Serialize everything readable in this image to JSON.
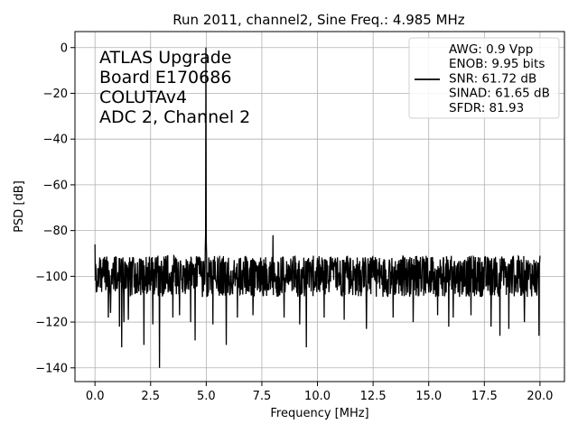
{
  "chart_data": {
    "type": "line",
    "title": "Run 2011, channel2, Sine Freq.: 4.985 MHz",
    "xlabel": "Frequency [MHz]",
    "ylabel": "PSD [dB]",
    "xlim": [
      -0.9,
      21.1
    ],
    "ylim": [
      -146,
      7
    ],
    "x_ticks": [
      0.0,
      2.5,
      5.0,
      7.5,
      10.0,
      12.5,
      15.0,
      17.5,
      20.0
    ],
    "x_tick_labels": [
      "0.0",
      "2.5",
      "5.0",
      "7.5",
      "10.0",
      "12.5",
      "15.0",
      "17.5",
      "20.0"
    ],
    "y_ticks": [
      0,
      -20,
      -40,
      -60,
      -80,
      -100,
      -120,
      -140
    ],
    "y_tick_labels": [
      "0",
      "−20",
      "−40",
      "−60",
      "−80",
      "−100",
      "−120",
      "−140"
    ],
    "grid": true,
    "legend_position": "top-right",
    "annotation_lines": [
      "ATLAS Upgrade",
      " Board E170686",
      "COLUTAv4",
      "ADC 2, Channel 2"
    ],
    "legend_lines": [
      "AWG: 0.9 Vpp",
      "ENOB: 9.95 bits",
      "SNR: 61.72 dB",
      "SINAD: 61.65 dB",
      "SFDR: 81.93"
    ],
    "series": [
      {
        "color": "#000000",
        "noise_floor_db": -100,
        "noise_band_db": [
          -110,
          -91
        ],
        "start_point": [
          0.0,
          -86
        ],
        "peaks": [
          {
            "x": 4.985,
            "y": 0
          },
          {
            "x": 8.0,
            "y": -82
          }
        ],
        "dips": [
          {
            "x": 0.05,
            "y": -107
          },
          {
            "x": 0.6,
            "y": -118
          },
          {
            "x": 0.7,
            "y": -116
          },
          {
            "x": 1.1,
            "y": -122
          },
          {
            "x": 1.3,
            "y": -120
          },
          {
            "x": 1.2,
            "y": -131
          },
          {
            "x": 1.5,
            "y": -119
          },
          {
            "x": 2.2,
            "y": -130
          },
          {
            "x": 2.6,
            "y": -121
          },
          {
            "x": 2.9,
            "y": -140
          },
          {
            "x": 3.5,
            "y": -118
          },
          {
            "x": 3.8,
            "y": -117
          },
          {
            "x": 4.3,
            "y": -120
          },
          {
            "x": 4.5,
            "y": -128
          },
          {
            "x": 5.3,
            "y": -121
          },
          {
            "x": 5.9,
            "y": -130
          },
          {
            "x": 6.4,
            "y": -118
          },
          {
            "x": 7.1,
            "y": -117
          },
          {
            "x": 8.5,
            "y": -118
          },
          {
            "x": 9.2,
            "y": -121
          },
          {
            "x": 9.5,
            "y": -131
          },
          {
            "x": 10.3,
            "y": -118
          },
          {
            "x": 11.2,
            "y": -119
          },
          {
            "x": 12.2,
            "y": -123
          },
          {
            "x": 13.4,
            "y": -118
          },
          {
            "x": 14.3,
            "y": -120
          },
          {
            "x": 15.4,
            "y": -117
          },
          {
            "x": 15.9,
            "y": -122
          },
          {
            "x": 16.1,
            "y": -118
          },
          {
            "x": 16.9,
            "y": -117
          },
          {
            "x": 17.8,
            "y": -122
          },
          {
            "x": 18.2,
            "y": -126
          },
          {
            "x": 18.6,
            "y": -123
          },
          {
            "x": 19.3,
            "y": -120
          },
          {
            "x": 19.95,
            "y": -126
          }
        ],
        "end_point": [
          20.0,
          -91
        ]
      }
    ]
  }
}
